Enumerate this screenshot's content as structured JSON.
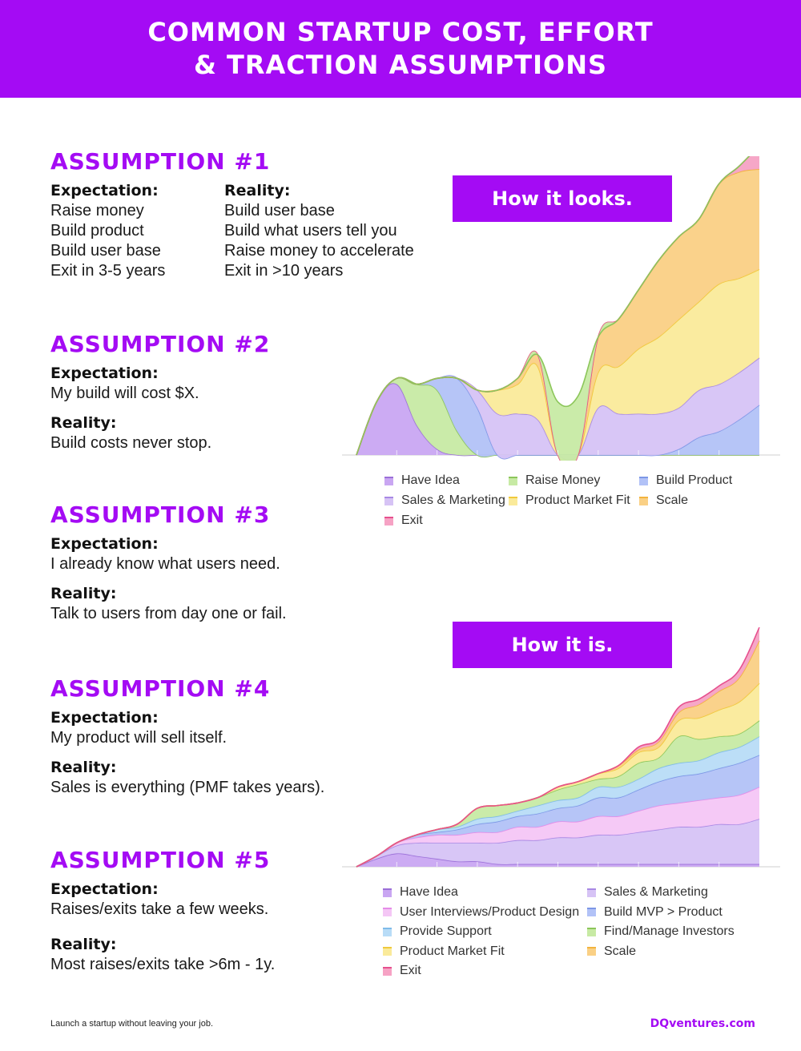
{
  "header": {
    "line1": "COMMON STARTUP COST, EFFORT",
    "line2": "& TRACTION ASSUMPTIONS"
  },
  "assumptions": [
    {
      "title": "ASSUMPTION #1",
      "expectation_label": "Expectation:",
      "reality_label": "Reality:",
      "expectation": [
        "Raise money",
        "Build product",
        "Build user base",
        "Exit in 3-5 years"
      ],
      "reality": [
        "Build user base",
        "Build what users tell you",
        "Raise money to accelerate",
        "Exit in >10 years"
      ]
    },
    {
      "title": "ASSUMPTION #2",
      "expectation_label": "Expectation:",
      "reality_label": "Reality:",
      "expectation": "My build will cost $X.",
      "reality": "Build costs never stop."
    },
    {
      "title": "ASSUMPTION #3",
      "expectation_label": "Expectation:",
      "reality_label": "Reality:",
      "expectation": "I already know what users need.",
      "reality": "Talk to users from day one or fail."
    },
    {
      "title": "ASSUMPTION #4",
      "expectation_label": "Expectation:",
      "reality_label": "Reality:",
      "expectation": "My product will sell itself.",
      "reality": "Sales is everything (PMF takes years)."
    },
    {
      "title": "ASSUMPTION #5",
      "expectation_label": "Expectation:",
      "reality_label": "Reality:",
      "expectation": "Raises/exits take a few weeks.",
      "reality": "Most raises/exits take >6m - 1y."
    }
  ],
  "chart_data": [
    {
      "type": "area",
      "title": "How it looks.",
      "x": [
        0,
        1,
        2,
        3,
        4,
        5,
        6,
        7,
        8,
        9,
        10,
        11,
        12,
        13,
        14,
        15,
        16,
        17,
        18,
        19,
        20
      ],
      "ylim": [
        0,
        100
      ],
      "series": [
        {
          "name": "Have Idea",
          "color": "#c9a6f2",
          "line": "#9b6fd8",
          "values": [
            0,
            18,
            24,
            10,
            2,
            0,
            0,
            0,
            0,
            0,
            0,
            0,
            0,
            0,
            0,
            0,
            0,
            0,
            0,
            0,
            0
          ]
        },
        {
          "name": "Raise Money",
          "color": "#c7eaa4",
          "line": "#8cc65a",
          "values": [
            0,
            0,
            2,
            14,
            20,
            8,
            0,
            0,
            0,
            0,
            0,
            0,
            0,
            0,
            0,
            0,
            0,
            0,
            0,
            0,
            0
          ]
        },
        {
          "name": "Build Product",
          "color": "#b2c2f7",
          "line": "#7d97e6",
          "values": [
            0,
            0,
            0,
            0,
            4,
            18,
            16,
            0,
            0,
            0,
            0,
            0,
            0,
            0,
            0,
            0,
            2,
            6,
            8,
            12,
            17
          ]
        },
        {
          "name": "Sales & Marketing",
          "color": "#d6c3f5",
          "line": "#a889e4",
          "values": [
            0,
            0,
            0,
            0,
            0,
            0,
            6,
            14,
            14,
            12,
            0,
            0,
            16,
            14,
            14,
            14,
            14,
            16,
            16,
            16,
            16
          ]
        },
        {
          "name": "Product Market Fit",
          "color": "#faea9a",
          "line": "#f0c93c",
          "values": [
            0,
            0,
            0,
            0,
            0,
            0,
            0,
            8,
            10,
            18,
            0,
            0,
            12,
            16,
            22,
            26,
            30,
            30,
            34,
            32,
            30
          ]
        },
        {
          "name": "Scale",
          "color": "#fad085",
          "line": "#f3b33e",
          "values": [
            0,
            0,
            0,
            0,
            0,
            0,
            0,
            0,
            2,
            4,
            0,
            0,
            12,
            16,
            20,
            26,
            28,
            28,
            34,
            36,
            34
          ]
        },
        {
          "name": "Exit",
          "color": "#f6a2c4",
          "line": "#e6508e",
          "values": [
            0,
            0,
            0,
            0,
            0,
            0,
            0,
            0,
            0,
            0,
            0,
            0,
            0,
            0,
            0,
            0,
            0,
            0,
            0,
            2,
            8
          ]
        },
        {
          "name": "",
          "color": "#c7eaa4",
          "line": "#8cc65a",
          "values": [
            0,
            0,
            0,
            0,
            0,
            0,
            0,
            0,
            0,
            0,
            18,
            20,
            0,
            0,
            0,
            0,
            0,
            0,
            0,
            0,
            0
          ]
        }
      ],
      "legend": [
        {
          "name": "Have Idea",
          "color": "#c9a6f2",
          "line": "#9b6fd8"
        },
        {
          "name": "Raise Money",
          "color": "#c7eaa4",
          "line": "#8cc65a"
        },
        {
          "name": "Build Product",
          "color": "#b2c2f7",
          "line": "#7d97e6"
        },
        {
          "name": "Sales & Marketing",
          "color": "#d6c3f5",
          "line": "#a889e4"
        },
        {
          "name": "Product Market Fit",
          "color": "#faea9a",
          "line": "#f0c93c"
        },
        {
          "name": "Scale",
          "color": "#fad085",
          "line": "#f3b33e"
        },
        {
          "name": "Exit",
          "color": "#f6a2c4",
          "line": "#e6508e"
        }
      ]
    },
    {
      "type": "area",
      "title": "How it is.",
      "x": [
        0,
        1,
        2,
        3,
        4,
        5,
        6,
        7,
        8,
        9,
        10,
        11,
        12,
        13,
        14,
        15,
        16,
        17,
        18,
        19,
        20
      ],
      "ylim": [
        0,
        100
      ],
      "series": [
        {
          "name": "Have Idea",
          "color": "#c9a6f2",
          "line": "#9b6fd8",
          "values": [
            0,
            3,
            5,
            4,
            3,
            2,
            2,
            1,
            1,
            1,
            1,
            1,
            1,
            1,
            1,
            1,
            1,
            1,
            1,
            1,
            1
          ]
        },
        {
          "name": "Sales & Marketing",
          "color": "#d6c3f5",
          "line": "#a889e4",
          "values": [
            0,
            1,
            3,
            5,
            6,
            7,
            7,
            8,
            9,
            9,
            10,
            10,
            11,
            11,
            12,
            13,
            14,
            14,
            15,
            15,
            17
          ]
        },
        {
          "name": "User Interviews/Product Design",
          "color": "#f4c6f5",
          "line": "#e58ce8",
          "values": [
            0,
            0,
            1,
            2,
            3,
            3,
            4,
            4,
            5,
            5,
            6,
            6,
            7,
            7,
            8,
            9,
            9,
            10,
            10,
            11,
            12
          ]
        },
        {
          "name": "Build MVP > Product",
          "color": "#b2c2f7",
          "line": "#7d97e6",
          "values": [
            0,
            0,
            0,
            1,
            1,
            2,
            3,
            4,
            4,
            5,
            5,
            6,
            7,
            7,
            8,
            9,
            10,
            10,
            11,
            12,
            12
          ]
        },
        {
          "name": "Provide Support",
          "color": "#b8dcf7",
          "line": "#7fbbe9",
          "values": [
            0,
            0,
            0,
            0,
            1,
            1,
            2,
            2,
            2,
            3,
            3,
            3,
            4,
            4,
            4,
            5,
            5,
            5,
            6,
            6,
            7
          ]
        },
        {
          "name": "Find/Manage Investors",
          "color": "#c7eaa4",
          "line": "#8cc65a",
          "values": [
            0,
            0,
            0,
            0,
            0,
            1,
            4,
            4,
            3,
            3,
            4,
            5,
            3,
            4,
            6,
            4,
            10,
            8,
            6,
            5,
            6
          ]
        },
        {
          "name": "Product Market Fit",
          "color": "#faea9a",
          "line": "#f0c93c",
          "values": [
            0,
            0,
            0,
            0,
            0,
            0,
            0,
            0,
            0,
            0,
            1,
            1,
            2,
            3,
            4,
            4,
            6,
            8,
            10,
            12,
            14
          ]
        },
        {
          "name": "Scale",
          "color": "#fad085",
          "line": "#f3b33e",
          "values": [
            0,
            0,
            0,
            0,
            0,
            0,
            0,
            0,
            0,
            0,
            0,
            0,
            0,
            1,
            1,
            2,
            3,
            5,
            7,
            9,
            16
          ]
        },
        {
          "name": "Exit",
          "color": "#f6a2c4",
          "line": "#e6508e",
          "values": [
            0,
            0,
            0,
            0,
            0,
            0,
            0,
            0,
            0,
            0,
            0,
            0,
            0,
            0,
            1,
            1,
            2,
            2,
            2,
            3,
            5
          ]
        }
      ],
      "legend": [
        {
          "name": "Have Idea",
          "color": "#c9a6f2",
          "line": "#9b6fd8"
        },
        {
          "name": "Sales & Marketing",
          "color": "#d6c3f5",
          "line": "#a889e4"
        },
        {
          "name": "User Interviews/Product Design",
          "color": "#f4c6f5",
          "line": "#e58ce8"
        },
        {
          "name": "Build MVP > Product",
          "color": "#b2c2f7",
          "line": "#7d97e6"
        },
        {
          "name": "Provide Support",
          "color": "#b8dcf7",
          "line": "#7fbbe9"
        },
        {
          "name": "Find/Manage Investors",
          "color": "#c7eaa4",
          "line": "#8cc65a"
        },
        {
          "name": "Product Market Fit",
          "color": "#faea9a",
          "line": "#f0c93c"
        },
        {
          "name": "Scale",
          "color": "#fad085",
          "line": "#f3b33e"
        },
        {
          "name": "Exit",
          "color": "#f6a2c4",
          "line": "#e6508e"
        }
      ]
    }
  ],
  "footer": {
    "tagline": "Launch a startup without leaving your job.",
    "brand": "DQventures.com"
  }
}
